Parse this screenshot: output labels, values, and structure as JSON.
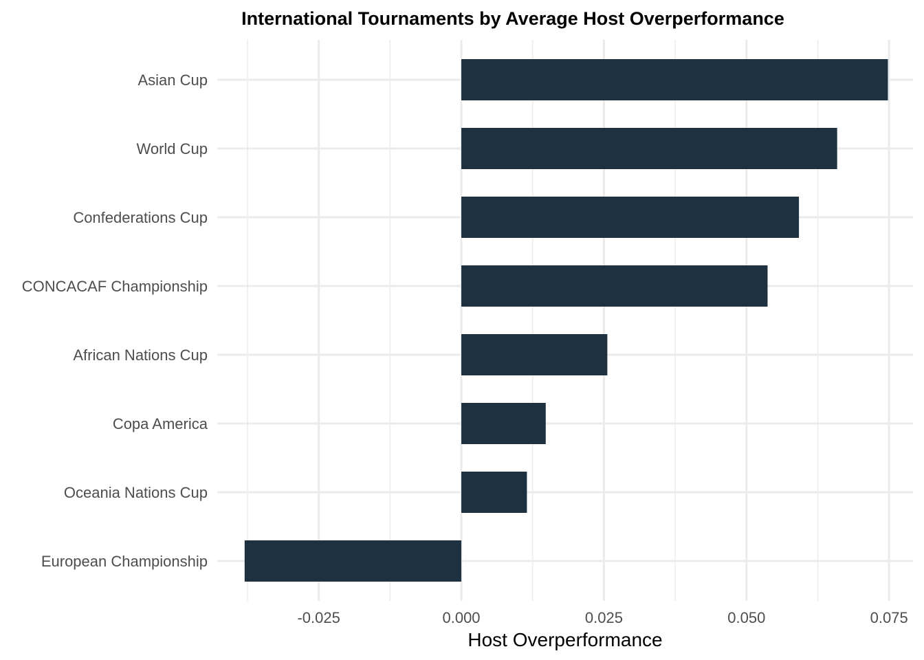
{
  "chart_data": {
    "type": "bar",
    "orientation": "horizontal",
    "title": "International Tournaments by Average Host Overperformance",
    "xlabel": "Host Overperformance",
    "ylabel": "",
    "categories": [
      "Asian Cup",
      "World Cup",
      "Confederations Cup",
      "CONCACAF Championship",
      "African Nations Cup",
      "Copa America",
      "Oceania Nations Cup",
      "European Championship"
    ],
    "values": [
      0.0748,
      0.0659,
      0.0592,
      0.0537,
      0.0256,
      0.0148,
      0.0115,
      -0.038
    ],
    "xticks": [
      -0.025,
      0.0,
      0.025,
      0.05,
      0.075
    ],
    "xtick_labels": [
      "-0.025",
      "0.000",
      "0.025",
      "0.050",
      "0.075"
    ],
    "xlim": [
      -0.0428,
      0.0792
    ],
    "grid": true,
    "legend": "none",
    "bar_color": "#1e3140",
    "grid_color": "#ebebeb"
  }
}
